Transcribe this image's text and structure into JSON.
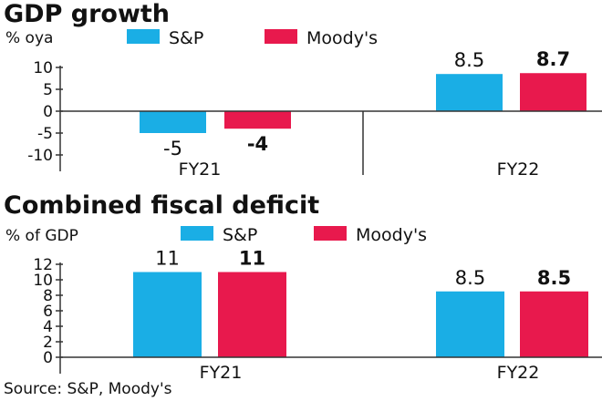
{
  "colors": {
    "sp": "#1aaee5",
    "moodys": "#e8194d",
    "axis": "#333333",
    "text": "#111111"
  },
  "chart_data": [
    {
      "type": "bar",
      "title": "GDP growth",
      "ylabel": "% oya",
      "categories": [
        "FY21",
        "FY22"
      ],
      "series": [
        {
          "name": "S&P",
          "values": [
            -5,
            8.5
          ],
          "labels": [
            "-5",
            "8.5"
          ]
        },
        {
          "name": "Moody's",
          "values": [
            -4,
            8.7
          ],
          "labels": [
            "-4",
            "8.7"
          ]
        }
      ],
      "ylim": [
        -10,
        10
      ],
      "yticks": [
        10,
        5,
        0,
        -5,
        -10
      ],
      "legend": "top"
    },
    {
      "type": "bar",
      "title": "Combined fiscal deficit",
      "ylabel": "% of GDP",
      "categories": [
        "FY21",
        "FY22"
      ],
      "series": [
        {
          "name": "S&P",
          "values": [
            11,
            8.5
          ],
          "labels": [
            "11",
            "8.5"
          ]
        },
        {
          "name": "Moody's",
          "values": [
            11,
            8.5
          ],
          "labels": [
            "11",
            "8.5"
          ]
        }
      ],
      "ylim": [
        0,
        12
      ],
      "yticks": [
        12,
        10,
        8,
        6,
        4,
        2,
        0
      ],
      "legend": "top"
    }
  ],
  "source": "Source: S&P, Moody's"
}
